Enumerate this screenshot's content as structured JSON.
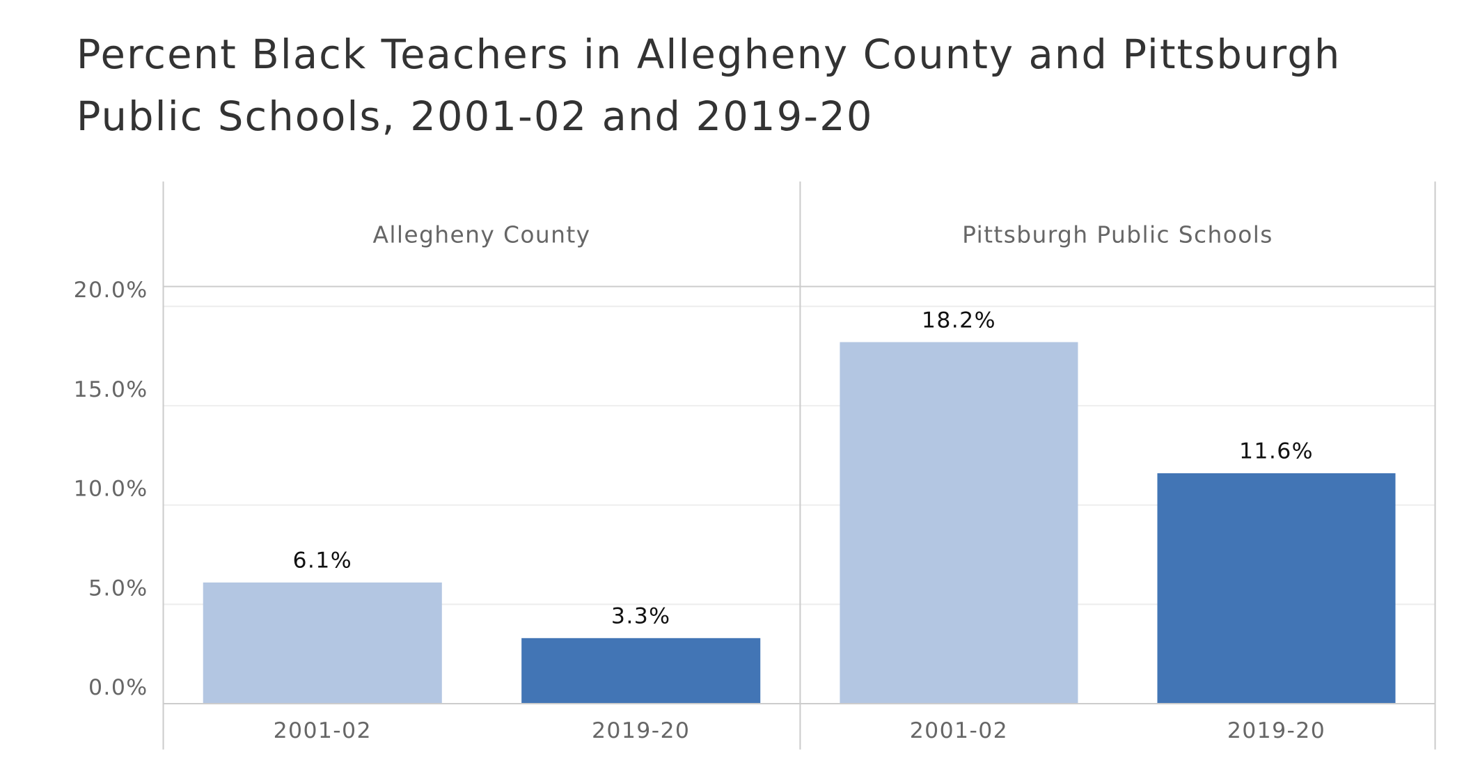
{
  "title": "Percent Black Teachers in Allegheny County and Pittsburgh Public Schools, 2001-02 and 2019-20",
  "chart_data": [
    {
      "type": "bar",
      "facet": "Allegheny County",
      "categories": [
        "2001-02",
        "2019-20"
      ],
      "values": [
        6.1,
        3.3
      ],
      "value_labels": [
        "6.1%",
        "3.3%"
      ],
      "colors": [
        "#b3c6e2",
        "#4275b5"
      ],
      "ylim": [
        0,
        21
      ],
      "yticks": [
        {
          "value": 0,
          "label": "0.0%"
        },
        {
          "value": 5,
          "label": "5.0%"
        },
        {
          "value": 10,
          "label": "10.0%"
        },
        {
          "value": 15,
          "label": "15.0%"
        },
        {
          "value": 20,
          "label": "20.0%"
        }
      ],
      "grid": true
    },
    {
      "type": "bar",
      "facet": "Pittsburgh Public Schools",
      "categories": [
        "2001-02",
        "2019-20"
      ],
      "values": [
        18.2,
        11.6
      ],
      "value_labels": [
        "18.2%",
        "11.6%"
      ],
      "colors": [
        "#b3c6e2",
        "#4275b5"
      ],
      "ylim": [
        0,
        21
      ],
      "yticks": [
        0,
        5,
        10,
        15,
        20
      ],
      "grid": true
    }
  ]
}
